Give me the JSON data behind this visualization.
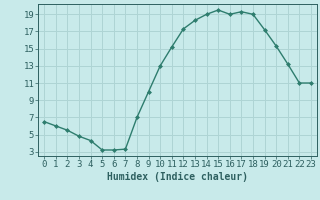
{
  "x": [
    0,
    1,
    2,
    3,
    4,
    5,
    6,
    7,
    8,
    9,
    10,
    11,
    12,
    13,
    14,
    15,
    16,
    17,
    18,
    19,
    20,
    21,
    22,
    23
  ],
  "y": [
    6.5,
    6.0,
    5.5,
    4.8,
    4.3,
    3.2,
    3.2,
    3.3,
    7.0,
    10.0,
    13.0,
    15.2,
    17.3,
    18.3,
    19.0,
    19.5,
    19.0,
    19.3,
    19.0,
    17.2,
    15.3,
    13.2,
    11.0,
    11.0
  ],
  "line_color": "#2e7d6e",
  "bg_color": "#c8eaea",
  "grid_color": "#aed4d4",
  "axes_color": "#2e6060",
  "xlabel": "Humidex (Indice chaleur)",
  "xlim": [
    -0.5,
    23.5
  ],
  "ylim": [
    2.5,
    20.2
  ],
  "xticks": [
    0,
    1,
    2,
    3,
    4,
    5,
    6,
    7,
    8,
    9,
    10,
    11,
    12,
    13,
    14,
    15,
    16,
    17,
    18,
    19,
    20,
    21,
    22,
    23
  ],
  "yticks": [
    3,
    5,
    7,
    9,
    11,
    13,
    15,
    17,
    19
  ],
  "label_fontsize": 7,
  "tick_fontsize": 6.5
}
